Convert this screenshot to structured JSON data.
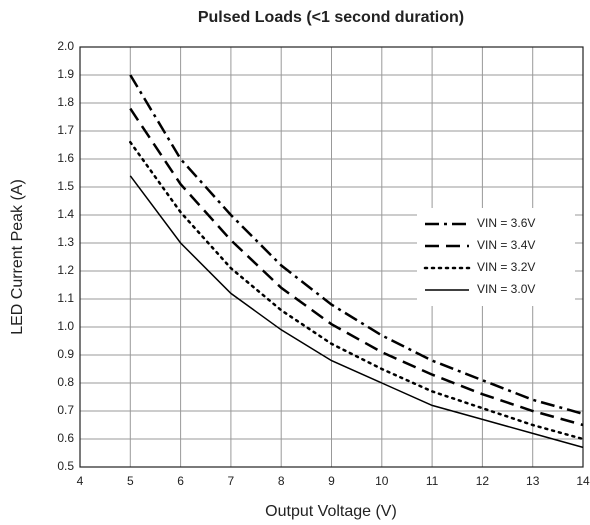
{
  "chart_data": {
    "type": "line",
    "title": "Pulsed Loads (<1 second duration)",
    "x_label": "Output Voltage (V)",
    "y_label": "LED Current Peak (A)",
    "x": [
      5,
      6,
      7,
      8,
      9,
      10,
      11,
      12,
      13,
      14
    ],
    "series": [
      {
        "name": "VIN = 3.6V",
        "color": "#000000",
        "dash": "dashdot",
        "values": [
          1.9,
          1.6,
          1.4,
          1.22,
          1.08,
          0.97,
          0.88,
          0.81,
          0.74,
          0.69
        ]
      },
      {
        "name": "VIN = 3.4V",
        "color": "#000000",
        "dash": "dashed",
        "values": [
          1.78,
          1.51,
          1.31,
          1.14,
          1.01,
          0.91,
          0.83,
          0.76,
          0.7,
          0.65
        ]
      },
      {
        "name": "VIN = 3.2V",
        "color": "#000000",
        "dash": "dotted",
        "values": [
          1.66,
          1.41,
          1.21,
          1.06,
          0.94,
          0.85,
          0.77,
          0.71,
          0.65,
          0.6
        ]
      },
      {
        "name": "VIN = 3.0V",
        "color": "#000000",
        "dash": "solid",
        "values": [
          1.54,
          1.3,
          1.12,
          0.99,
          0.88,
          0.8,
          0.72,
          0.67,
          0.62,
          0.57
        ]
      }
    ],
    "xlim": [
      4,
      14
    ],
    "xticks": [
      4,
      5,
      6,
      7,
      8,
      9,
      10,
      11,
      12,
      13,
      14
    ],
    "ylim": [
      0.5,
      2.0
    ],
    "yticks": [
      0.5,
      0.6,
      0.7,
      0.8,
      0.9,
      {
        "value": 1,
        "label": "1.0"
      },
      1.1,
      1.2,
      1.3,
      1.4,
      1.5,
      1.6,
      1.7,
      1.8,
      1.9,
      {
        "value": 2,
        "label": "2.0"
      }
    ],
    "grid": true,
    "legend": "right"
  }
}
